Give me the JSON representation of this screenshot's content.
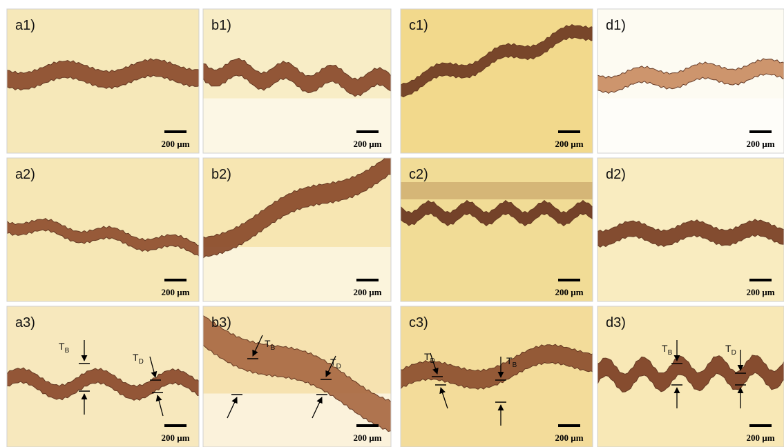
{
  "panels": [
    {
      "label": "a1)",
      "scale_bar": "200 µm"
    },
    {
      "label": "b1)",
      "scale_bar": "200 µm"
    },
    {
      "label": "c1)",
      "scale_bar": "200 µm"
    },
    {
      "label": "d1)",
      "scale_bar": "200 µm"
    },
    {
      "label": "a2)",
      "scale_bar": "200 µm"
    },
    {
      "label": "b2)",
      "scale_bar": "200 µm"
    },
    {
      "label": "c2)",
      "scale_bar": "200 µm"
    },
    {
      "label": "d2)",
      "scale_bar": "200 µm"
    },
    {
      "label": "a3)",
      "scale_bar": "200 µm",
      "annotations": [
        {
          "symbol": "T",
          "subscript": "B"
        },
        {
          "symbol": "T",
          "subscript": "D"
        }
      ]
    },
    {
      "label": "b3)",
      "scale_bar": "200 µm",
      "annotations": [
        {
          "symbol": "T",
          "subscript": "B"
        },
        {
          "symbol": "T",
          "subscript": "D"
        }
      ]
    },
    {
      "label": "c3)",
      "scale_bar": "200 µm",
      "annotations": [
        {
          "symbol": "T",
          "subscript": "D"
        },
        {
          "symbol": "T",
          "subscript": "B"
        }
      ]
    },
    {
      "label": "d3)",
      "scale_bar": "200 µm",
      "annotations": [
        {
          "symbol": "T",
          "subscript": "B"
        },
        {
          "symbol": "T",
          "subscript": "D"
        }
      ]
    }
  ]
}
